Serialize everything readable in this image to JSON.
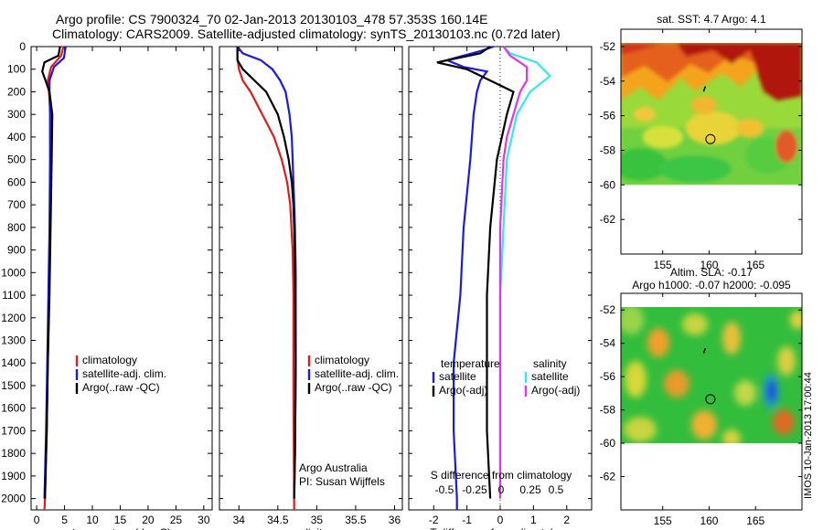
{
  "header": {
    "title_line1": "Argo profile: CS 7900324_70 02-Jan-2013 20130103_478 57.353S 160.14E",
    "title_line2": "Climatology: CARS2009. Satellite-adjusted climatology: synTS_20130103.nc (0.72d later)"
  },
  "footer_label": "IMOS 10-Jan-2013 17:00:44",
  "colors": {
    "climatology": "#e01b1b",
    "satellite": "#1a1ae6",
    "argo": "#000000",
    "salinity_satellite": "#33e8f0",
    "salinity_argo": "#e633e6"
  },
  "chart_data": [
    {
      "type": "line",
      "name": "temperature_profile",
      "xlabel": "temperature (deg C)",
      "ylabel": "",
      "xlim": [
        -1,
        31.5
      ],
      "ylim": [
        2050,
        0
      ],
      "x_ticks": [
        0,
        5,
        10,
        15,
        20,
        25,
        30
      ],
      "y_ticks": [
        0,
        100,
        200,
        300,
        400,
        500,
        600,
        700,
        800,
        900,
        1000,
        1100,
        1200,
        1300,
        1400,
        1500,
        1600,
        1700,
        1800,
        1900,
        2000
      ],
      "legend": [
        "climatology",
        "satellite-adj. clim.",
        "Argo(..raw -QC)"
      ],
      "legend_position": "lower-right",
      "series": [
        {
          "name": "climatology",
          "color_key": "climatology",
          "points": [
            [
              4.8,
              0
            ],
            [
              4.4,
              40
            ],
            [
              2.6,
              90
            ],
            [
              2.0,
              150
            ],
            [
              2.2,
              200
            ],
            [
              2.5,
              300
            ],
            [
              2.6,
              500
            ],
            [
              2.4,
              800
            ],
            [
              2.2,
              1100
            ],
            [
              2.0,
              1400
            ],
            [
              1.8,
              1700
            ],
            [
              1.5,
              2000
            ],
            [
              1.4,
              2050
            ]
          ]
        },
        {
          "name": "satellite-adj. clim.",
          "color_key": "satellite",
          "points": [
            [
              5.2,
              0
            ],
            [
              4.9,
              50
            ],
            [
              3.1,
              90
            ],
            [
              2.3,
              150
            ],
            [
              2.3,
              200
            ],
            [
              2.4,
              300
            ],
            [
              2.4,
              500
            ],
            [
              2.3,
              800
            ],
            [
              2.1,
              1100
            ],
            [
              1.9,
              1400
            ],
            [
              1.7,
              1700
            ],
            [
              1.4,
              2000
            ]
          ]
        },
        {
          "name": "Argo(..raw -QC)",
          "color_key": "argo",
          "points": [
            [
              4.2,
              0
            ],
            [
              3.9,
              40
            ],
            [
              1.4,
              70
            ],
            [
              1.0,
              110
            ],
            [
              1.6,
              150
            ],
            [
              2.3,
              200
            ],
            [
              2.8,
              300
            ],
            [
              2.7,
              500
            ],
            [
              2.5,
              800
            ],
            [
              2.3,
              1100
            ],
            [
              2.0,
              1400
            ],
            [
              1.8,
              1700
            ],
            [
              1.5,
              2000
            ]
          ]
        }
      ]
    },
    {
      "type": "line",
      "name": "salinity_profile",
      "xlabel": "salinity",
      "ylabel": "",
      "xlim": [
        33.75,
        36.1
      ],
      "ylim": [
        2050,
        0
      ],
      "x_ticks": [
        34,
        34.5,
        35,
        35.5,
        36
      ],
      "legend": [
        "climatology",
        "satellite-adj. clim.",
        "Argo(..raw -QC)"
      ],
      "legend_position": "lower-right",
      "annotation": [
        "Argo Australia",
        "PI: Susan Wijffels"
      ],
      "series": [
        {
          "name": "climatology",
          "color_key": "climatology",
          "points": [
            [
              33.98,
              0
            ],
            [
              33.98,
              50
            ],
            [
              34.0,
              100
            ],
            [
              34.05,
              150
            ],
            [
              34.15,
              200
            ],
            [
              34.3,
              300
            ],
            [
              34.45,
              400
            ],
            [
              34.55,
              500
            ],
            [
              34.62,
              600
            ],
            [
              34.66,
              700
            ],
            [
              34.69,
              900
            ],
            [
              34.7,
              1100
            ],
            [
              34.7,
              1500
            ],
            [
              34.71,
              2050
            ]
          ]
        },
        {
          "name": "satellite-adj. clim.",
          "color_key": "satellite",
          "points": [
            [
              33.98,
              0
            ],
            [
              34.05,
              30
            ],
            [
              34.28,
              60
            ],
            [
              34.43,
              100
            ],
            [
              34.53,
              150
            ],
            [
              34.6,
              200
            ],
            [
              34.65,
              300
            ],
            [
              34.68,
              400
            ],
            [
              34.7,
              600
            ],
            [
              34.72,
              800
            ],
            [
              34.73,
              1000
            ],
            [
              34.73,
              1400
            ],
            [
              34.72,
              1800
            ],
            [
              34.71,
              2000
            ]
          ]
        },
        {
          "name": "Argo(..raw -QC)",
          "color_key": "argo",
          "points": [
            [
              33.98,
              0
            ],
            [
              33.98,
              60
            ],
            [
              34.05,
              100
            ],
            [
              34.2,
              150
            ],
            [
              34.35,
              200
            ],
            [
              34.5,
              300
            ],
            [
              34.58,
              400
            ],
            [
              34.64,
              500
            ],
            [
              34.68,
              600
            ],
            [
              34.7,
              700
            ],
            [
              34.71,
              800
            ],
            [
              34.72,
              1000
            ],
            [
              34.73,
              1400
            ],
            [
              34.72,
              1800
            ],
            [
              34.71,
              2000
            ]
          ]
        }
      ]
    },
    {
      "type": "line",
      "name": "difference_profile",
      "xlabel": "T difference from climatology",
      "ylabel": "",
      "secondary_xlabel": "S difference from climatology",
      "xlim": [
        -2.75,
        2.75
      ],
      "ylim": [
        2050,
        0
      ],
      "x_ticks": [
        -2,
        -1,
        0,
        1,
        2
      ],
      "secondary_x_ticks": [
        "-0.5",
        "-0.25",
        "0",
        "0.25",
        "0.5"
      ],
      "legend_title_left": "temperature",
      "legend_title_right": "salinity",
      "legend_left": [
        "satellite",
        "Argo(-adj)"
      ],
      "legend_right": [
        "satellite",
        "Argo(-adj)"
      ],
      "series": [
        {
          "name": "temperature satellite",
          "color_key": "satellite",
          "points": [
            [
              -0.2,
              0
            ],
            [
              -0.6,
              20
            ],
            [
              -1.6,
              60
            ],
            [
              -1.1,
              90
            ],
            [
              -0.4,
              110
            ],
            [
              -0.6,
              150
            ],
            [
              -0.7,
              200
            ],
            [
              -0.8,
              300
            ],
            [
              -0.9,
              500
            ],
            [
              -1.1,
              800
            ],
            [
              -1.2,
              1100
            ],
            [
              -1.4,
              1400
            ],
            [
              -1.4,
              1700
            ],
            [
              -1.3,
              2000
            ],
            [
              -1.3,
              2050
            ]
          ]
        },
        {
          "name": "temperature Argo(-adj)",
          "color_key": "argo",
          "points": [
            [
              -0.3,
              0
            ],
            [
              -0.6,
              30
            ],
            [
              -1.9,
              70
            ],
            [
              -1.0,
              100
            ],
            [
              -0.3,
              150
            ],
            [
              0.4,
              200
            ],
            [
              0.2,
              300
            ],
            [
              -0.1,
              500
            ],
            [
              -0.3,
              800
            ],
            [
              -0.4,
              1100
            ],
            [
              -0.4,
              1400
            ],
            [
              -0.4,
              1700
            ],
            [
              -0.3,
              2000
            ]
          ]
        },
        {
          "name": "salinity satellite",
          "color_key": "salinity_satellite",
          "points": [
            [
              0.1,
              0
            ],
            [
              0.3,
              30
            ],
            [
              1.1,
              70
            ],
            [
              1.5,
              130
            ],
            [
              0.9,
              200
            ],
            [
              0.5,
              300
            ],
            [
              0.2,
              500
            ],
            [
              0.1,
              800
            ],
            [
              0.0,
              1100
            ],
            [
              0.0,
              1500
            ],
            [
              0.0,
              2000
            ]
          ]
        },
        {
          "name": "salinity Argo(-adj)",
          "color_key": "salinity_argo",
          "points": [
            [
              0.1,
              0
            ],
            [
              0.3,
              40
            ],
            [
              0.8,
              90
            ],
            [
              0.8,
              150
            ],
            [
              0.6,
              200
            ],
            [
              0.4,
              300
            ],
            [
              0.2,
              400
            ],
            [
              0.1,
              500
            ],
            [
              0.0,
              800
            ],
            [
              0.0,
              2000
            ]
          ]
        }
      ]
    },
    {
      "type": "heatmap",
      "name": "sst_map",
      "title": "sat. SST: 4.7  Argo: 4.1",
      "xlim": [
        150.5,
        170
      ],
      "ylim": [
        -64,
        -51
      ],
      "x_ticks": [
        155,
        160,
        165
      ],
      "y_ticks": [
        -52,
        -54,
        -56,
        -58,
        -60,
        -62
      ],
      "data_extent_lat": [
        -60,
        -51
      ],
      "argo_position": [
        160.14,
        -57.353
      ]
    },
    {
      "type": "heatmap",
      "name": "sla_map",
      "title": "Altim. SLA: -0.17",
      "subtitle": "Argo h1000: -0.07 h2000: -0.095",
      "xlim": [
        150.5,
        170
      ],
      "ylim": [
        -64,
        -51
      ],
      "x_ticks": [
        155,
        160,
        165
      ],
      "y_ticks": [
        -52,
        -54,
        -56,
        -58,
        -60,
        -62
      ],
      "data_extent_lat": [
        -60,
        -51
      ],
      "argo_position": [
        160.14,
        -57.353
      ]
    }
  ]
}
